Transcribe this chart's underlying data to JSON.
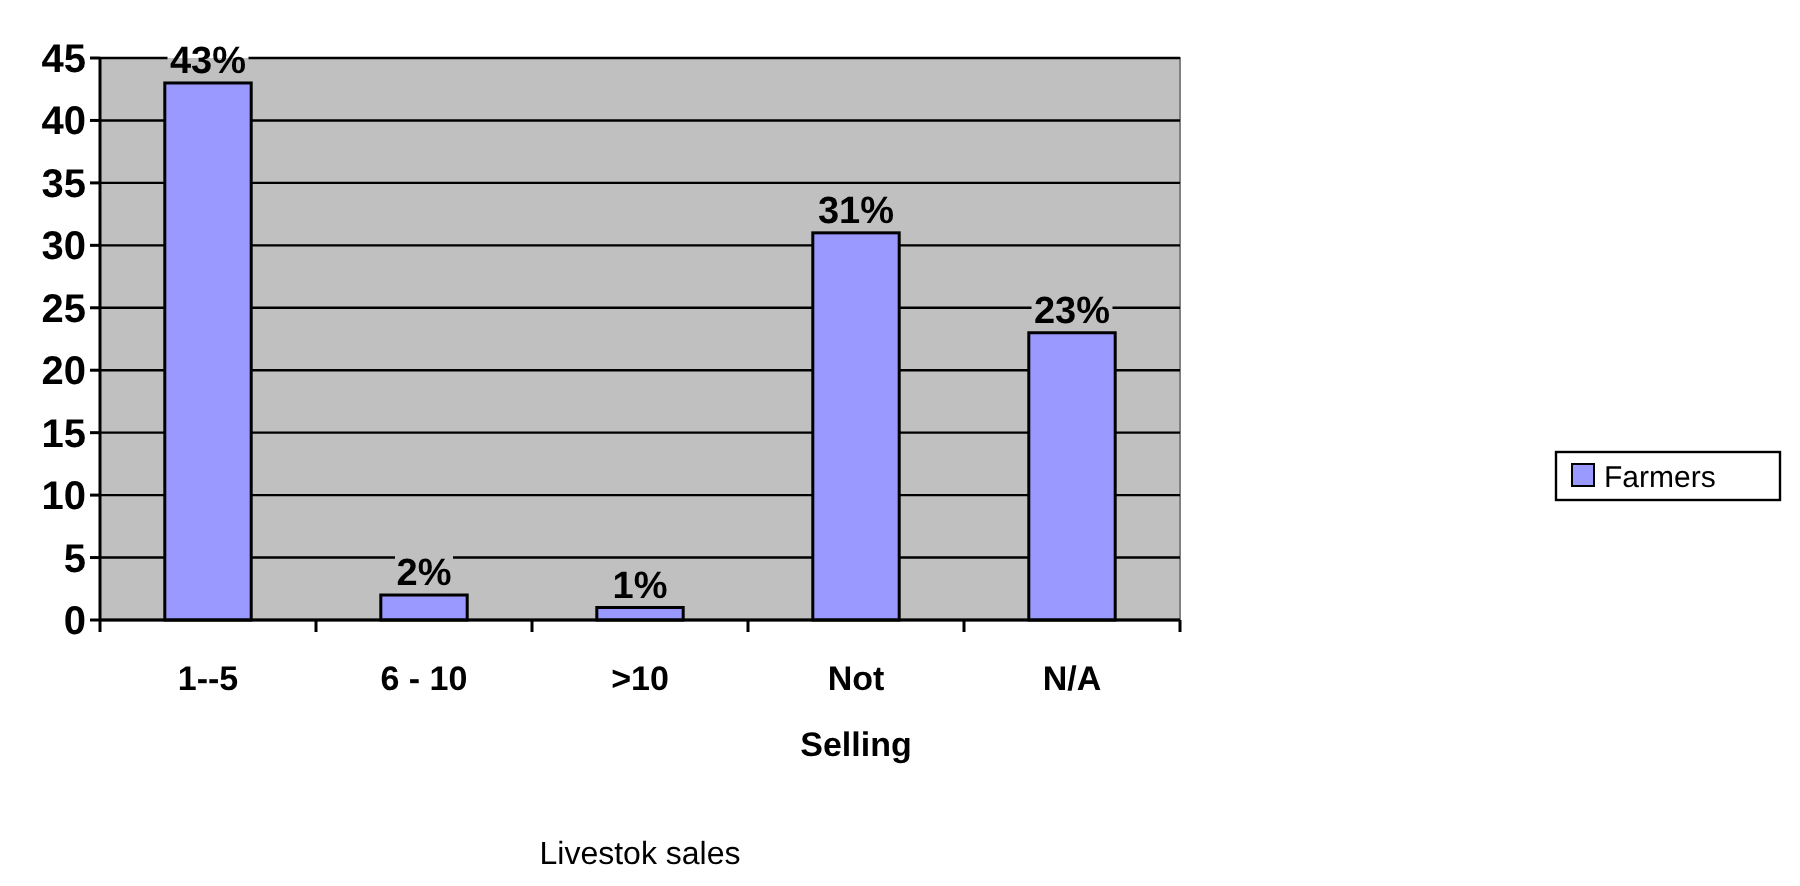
{
  "chart_data": {
    "type": "bar",
    "categories": [
      "1--5",
      "6 - 10",
      ">10",
      "Not Selling",
      "N/A"
    ],
    "series": [
      {
        "name": "Farmers",
        "color": "#9999ff",
        "values": [
          43,
          2,
          1,
          31,
          23
        ],
        "value_labels": [
          "43%",
          "2%",
          "1%",
          "31%",
          "23%"
        ]
      }
    ],
    "xlabel": "Livestok sales",
    "ylim": [
      0,
      45
    ],
    "yticks": [
      0,
      5,
      10,
      15,
      20,
      25,
      30,
      35,
      40,
      45
    ],
    "grid": "y",
    "legend": "right"
  }
}
